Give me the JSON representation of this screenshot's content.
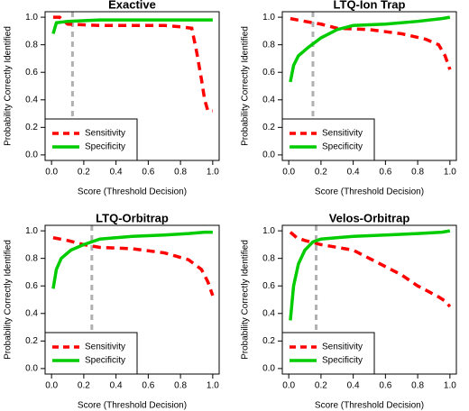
{
  "chart_data": [
    {
      "type": "line",
      "title": "Exactive",
      "xlabel": "Score (Threshold Decision)",
      "ylabel": "Probability Correctly Identified",
      "xlim": [
        -0.04,
        1.04
      ],
      "ylim": [
        -0.04,
        1.04
      ],
      "xticks": [
        {
          "value": 0,
          "label": "0.0"
        },
        {
          "value": 0.2,
          "label": "0.2"
        },
        {
          "value": 0.4,
          "label": "0.4"
        },
        {
          "value": 0.6,
          "label": "0.6"
        },
        {
          "value": 0.8,
          "label": "0.8"
        },
        {
          "value": 1,
          "label": "1.0"
        }
      ],
      "yticks": [
        {
          "value": 0,
          "label": "0.0"
        },
        {
          "value": 0.2,
          "label": "0.2"
        },
        {
          "value": 0.4,
          "label": "0.4"
        },
        {
          "value": 0.6,
          "label": "0.6"
        },
        {
          "value": 0.8,
          "label": "0.8"
        },
        {
          "value": 1,
          "label": "1.0"
        }
      ],
      "vline": {
        "x": 0.13,
        "color": "#b0b0b0"
      },
      "legend": "bottomleft",
      "series": [
        {
          "name": "Sensitivity",
          "color": "#ff0000",
          "dashed": true,
          "x": [
            0.01,
            0.05,
            0.1,
            0.3,
            0.5,
            0.7,
            0.8,
            0.87,
            0.9,
            0.93,
            0.95,
            0.97,
            1.0
          ],
          "values": [
            1.0,
            1.0,
            0.95,
            0.94,
            0.94,
            0.94,
            0.93,
            0.92,
            0.75,
            0.55,
            0.4,
            0.32,
            0.32
          ]
        },
        {
          "name": "Specificity",
          "color": "#00cc00",
          "dashed": false,
          "x": [
            0.01,
            0.03,
            0.1,
            0.3,
            0.6,
            1.0
          ],
          "values": [
            0.88,
            0.96,
            0.97,
            0.98,
            0.98,
            0.98
          ]
        }
      ]
    },
    {
      "type": "line",
      "title": "LTQ-Ion Trap",
      "xlabel": "Score (Threshold Decision)",
      "ylabel": "Probability Correctly Identified",
      "xlim": [
        -0.04,
        1.04
      ],
      "ylim": [
        -0.04,
        1.04
      ],
      "xticks": [
        {
          "value": 0,
          "label": "0.0"
        },
        {
          "value": 0.2,
          "label": "0.2"
        },
        {
          "value": 0.4,
          "label": "0.4"
        },
        {
          "value": 0.6,
          "label": "0.6"
        },
        {
          "value": 0.8,
          "label": "0.8"
        },
        {
          "value": 1,
          "label": "1.0"
        }
      ],
      "yticks": [
        {
          "value": 0,
          "label": "0.0"
        },
        {
          "value": 0.2,
          "label": "0.2"
        },
        {
          "value": 0.4,
          "label": "0.4"
        },
        {
          "value": 0.6,
          "label": "0.6"
        },
        {
          "value": 0.8,
          "label": "0.8"
        },
        {
          "value": 1,
          "label": "1.0"
        }
      ],
      "vline": {
        "x": 0.15,
        "color": "#b0b0b0"
      },
      "legend": "bottomleft",
      "series": [
        {
          "name": "Sensitivity",
          "color": "#ff0000",
          "dashed": true,
          "x": [
            0.01,
            0.1,
            0.2,
            0.3,
            0.5,
            0.7,
            0.85,
            0.93,
            0.97,
            1.0
          ],
          "values": [
            0.99,
            0.97,
            0.95,
            0.92,
            0.91,
            0.88,
            0.84,
            0.8,
            0.72,
            0.62
          ]
        },
        {
          "name": "Specificity",
          "color": "#00cc00",
          "dashed": false,
          "x": [
            0.01,
            0.03,
            0.06,
            0.12,
            0.2,
            0.3,
            0.4,
            0.6,
            0.8,
            0.95,
            1.0
          ],
          "values": [
            0.53,
            0.65,
            0.72,
            0.78,
            0.85,
            0.91,
            0.94,
            0.95,
            0.97,
            0.99,
            1.0
          ]
        }
      ]
    },
    {
      "type": "line",
      "title": "LTQ-Orbitrap",
      "xlabel": "Score (Threshold Decision)",
      "ylabel": "Probability Correctly Identified",
      "xlim": [
        -0.04,
        1.04
      ],
      "ylim": [
        -0.04,
        1.04
      ],
      "xticks": [
        {
          "value": 0,
          "label": "0.0"
        },
        {
          "value": 0.2,
          "label": "0.2"
        },
        {
          "value": 0.4,
          "label": "0.4"
        },
        {
          "value": 0.6,
          "label": "0.6"
        },
        {
          "value": 0.8,
          "label": "0.8"
        },
        {
          "value": 1,
          "label": "1.0"
        }
      ],
      "yticks": [
        {
          "value": 0,
          "label": "0.0"
        },
        {
          "value": 0.2,
          "label": "0.2"
        },
        {
          "value": 0.4,
          "label": "0.4"
        },
        {
          "value": 0.6,
          "label": "0.6"
        },
        {
          "value": 0.8,
          "label": "0.8"
        },
        {
          "value": 1,
          "label": "1.0"
        }
      ],
      "vline": {
        "x": 0.25,
        "color": "#b0b0b0"
      },
      "legend": "bottomleft",
      "series": [
        {
          "name": "Sensitivity",
          "color": "#ff0000",
          "dashed": true,
          "x": [
            0.01,
            0.1,
            0.2,
            0.3,
            0.5,
            0.7,
            0.85,
            0.93,
            0.97,
            1.0
          ],
          "values": [
            0.95,
            0.93,
            0.9,
            0.88,
            0.87,
            0.84,
            0.79,
            0.72,
            0.63,
            0.53
          ]
        },
        {
          "name": "Specificity",
          "color": "#00cc00",
          "dashed": false,
          "x": [
            0.01,
            0.03,
            0.06,
            0.12,
            0.2,
            0.3,
            0.5,
            0.7,
            0.85,
            0.95,
            1.0
          ],
          "values": [
            0.58,
            0.72,
            0.8,
            0.86,
            0.9,
            0.94,
            0.96,
            0.97,
            0.98,
            0.99,
            0.99
          ]
        }
      ]
    },
    {
      "type": "line",
      "title": "Velos-Orbitrap",
      "xlabel": "Score (Threshold Decision)",
      "ylabel": "Probability Correctly Identified",
      "xlim": [
        -0.04,
        1.04
      ],
      "ylim": [
        -0.04,
        1.04
      ],
      "xticks": [
        {
          "value": 0,
          "label": "0.0"
        },
        {
          "value": 0.2,
          "label": "0.2"
        },
        {
          "value": 0.4,
          "label": "0.4"
        },
        {
          "value": 0.6,
          "label": "0.6"
        },
        {
          "value": 0.8,
          "label": "0.8"
        },
        {
          "value": 1,
          "label": "1.0"
        }
      ],
      "yticks": [
        {
          "value": 0,
          "label": "0.0"
        },
        {
          "value": 0.2,
          "label": "0.2"
        },
        {
          "value": 0.4,
          "label": "0.4"
        },
        {
          "value": 0.6,
          "label": "0.6"
        },
        {
          "value": 0.8,
          "label": "0.8"
        },
        {
          "value": 1,
          "label": "1.0"
        }
      ],
      "vline": {
        "x": 0.17,
        "color": "#b0b0b0"
      },
      "legend": "bottomleft",
      "series": [
        {
          "name": "Sensitivity",
          "color": "#ff0000",
          "dashed": true,
          "x": [
            0.01,
            0.05,
            0.1,
            0.2,
            0.3,
            0.4,
            0.5,
            0.6,
            0.7,
            0.8,
            0.85,
            0.93,
            0.97,
            1.0
          ],
          "values": [
            0.99,
            0.95,
            0.93,
            0.9,
            0.88,
            0.86,
            0.8,
            0.74,
            0.68,
            0.6,
            0.57,
            0.52,
            0.49,
            0.45
          ]
        },
        {
          "name": "Specificity",
          "color": "#00cc00",
          "dashed": false,
          "x": [
            0.01,
            0.03,
            0.06,
            0.1,
            0.15,
            0.2,
            0.4,
            0.6,
            0.8,
            0.95,
            1.0
          ],
          "values": [
            0.35,
            0.6,
            0.76,
            0.86,
            0.92,
            0.94,
            0.96,
            0.97,
            0.98,
            0.99,
            1.0
          ]
        }
      ]
    }
  ]
}
